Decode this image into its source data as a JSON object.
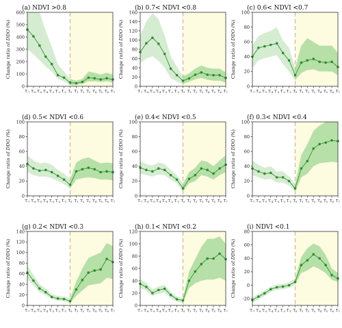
{
  "figure": {
    "ylabel_prefix": "Change ratio of ",
    "ylabel_var": "DDO",
    "ylabel_suffix": " (%)",
    "x_ticks": [
      "T-7",
      "T-6",
      "T-5",
      "T-4",
      "T-3",
      "T-2",
      "T-1",
      "T0",
      "T1",
      "T2",
      "T3",
      "T4",
      "T5",
      "T6",
      "T7"
    ],
    "colors": {
      "pre_band": "#d6ecd2",
      "post_band": "#b7e0a8",
      "post_bg": "#fdfbe0",
      "line": "#3c9a3c",
      "marker": "#2e8b2e",
      "divider": "#c8b89a"
    }
  },
  "chart_data": [
    {
      "type": "line",
      "panel": "(a)",
      "title": "(a) NDVI >0.8",
      "ylim": [
        0,
        600
      ],
      "yticks": [
        0,
        100,
        200,
        300,
        400,
        500,
        600
      ],
      "series": [
        {
          "values": [
            460,
            405,
            330,
            240,
            180,
            90,
            70,
            30,
            25,
            35,
            70,
            65,
            55,
            65,
            55
          ]
        }
      ],
      "band_low": [
        300,
        260,
        210,
        160,
        120,
        60,
        40,
        10,
        10,
        20,
        40,
        40,
        35,
        40,
        30
      ],
      "band_high": [
        600,
        600,
        600,
        450,
        320,
        180,
        120,
        60,
        45,
        60,
        120,
        110,
        95,
        110,
        95
      ]
    },
    {
      "type": "line",
      "panel": "(b)",
      "title": "(b) 0.7< NDVI <0.8",
      "ylim": [
        0,
        160
      ],
      "yticks": [
        0,
        20,
        40,
        60,
        80,
        100,
        120,
        140,
        160
      ],
      "series": [
        {
          "values": [
            74,
            93,
            105,
            92,
            70,
            38,
            24,
            12,
            17,
            25,
            30,
            25,
            24,
            24,
            18
          ]
        }
      ],
      "band_low": [
        50,
        60,
        65,
        55,
        40,
        18,
        10,
        5,
        10,
        15,
        18,
        14,
        12,
        12,
        8
      ],
      "band_high": [
        110,
        140,
        158,
        145,
        110,
        65,
        42,
        22,
        28,
        38,
        45,
        40,
        38,
        38,
        30
      ]
    },
    {
      "type": "line",
      "panel": "(c)",
      "title": "(c) 0.6< NDVI <0.7",
      "ylim": [
        0,
        100
      ],
      "yticks": [
        0,
        20,
        40,
        60,
        80,
        100
      ],
      "series": [
        {
          "values": [
            40,
            52,
            54,
            56,
            58,
            45,
            35,
            15,
            32,
            35,
            37,
            33,
            32,
            33,
            26
          ]
        }
      ],
      "band_low": [
        25,
        35,
        38,
        40,
        42,
        30,
        20,
        8,
        18,
        22,
        23,
        20,
        20,
        20,
        15
      ],
      "band_high": [
        55,
        68,
        72,
        75,
        80,
        62,
        52,
        25,
        55,
        65,
        60,
        55,
        55,
        55,
        45
      ]
    },
    {
      "type": "line",
      "panel": "(d)",
      "title": "(d) 0.5< NDVI <0.6",
      "ylim": [
        0,
        100
      ],
      "yticks": [
        0,
        20,
        40,
        60,
        80,
        100
      ],
      "series": [
        {
          "values": [
            43,
            37,
            34,
            35,
            32,
            27,
            22,
            15,
            33,
            36,
            38,
            36,
            32,
            33,
            32
          ]
        }
      ],
      "band_low": [
        32,
        28,
        26,
        26,
        24,
        20,
        16,
        10,
        22,
        24,
        25,
        24,
        22,
        22,
        21
      ],
      "band_high": [
        55,
        48,
        44,
        45,
        42,
        35,
        30,
        22,
        45,
        50,
        52,
        48,
        44,
        45,
        44
      ]
    },
    {
      "type": "line",
      "panel": "(e)",
      "title": "(e) 0.4< NDVI <0.5",
      "ylim": [
        0,
        100
      ],
      "yticks": [
        0,
        20,
        40,
        60,
        80,
        100
      ],
      "series": [
        {
          "values": [
            38,
            35,
            33,
            37,
            35,
            28,
            22,
            10,
            23,
            28,
            37,
            35,
            30,
            37,
            42
          ]
        }
      ],
      "band_low": [
        30,
        28,
        26,
        29,
        28,
        22,
        17,
        6,
        17,
        20,
        28,
        26,
        22,
        28,
        32
      ],
      "band_high": [
        47,
        43,
        41,
        45,
        43,
        35,
        28,
        16,
        32,
        38,
        48,
        46,
        40,
        48,
        55
      ]
    },
    {
      "type": "line",
      "panel": "(f)",
      "title": "(f) 0.3< NDVI <0.4",
      "ylim": [
        0,
        100
      ],
      "yticks": [
        0,
        20,
        40,
        60,
        80,
        100
      ],
      "series": [
        {
          "values": [
            37,
            33,
            30,
            31,
            25,
            25,
            20,
            10,
            37,
            47,
            64,
            70,
            72,
            75,
            74
          ]
        }
      ],
      "band_low": [
        28,
        25,
        22,
        23,
        18,
        18,
        14,
        6,
        25,
        30,
        40,
        44,
        45,
        46,
        45
      ],
      "band_high": [
        48,
        42,
        38,
        40,
        33,
        33,
        26,
        16,
        55,
        70,
        88,
        95,
        100,
        100,
        100
      ]
    },
    {
      "type": "line",
      "panel": "(g)",
      "title": "(g) 0.2< NDVI <0.3",
      "ylim": [
        0,
        140
      ],
      "yticks": [
        0,
        20,
        40,
        60,
        80,
        100,
        120,
        140
      ],
      "series": [
        {
          "values": [
            62,
            47,
            32,
            25,
            16,
            13,
            12,
            8,
            30,
            48,
            62,
            66,
            68,
            88,
            82
          ]
        }
      ],
      "band_low": [
        50,
        38,
        25,
        19,
        12,
        9,
        8,
        4,
        18,
        28,
        38,
        40,
        42,
        52,
        50
      ],
      "band_high": [
        75,
        58,
        40,
        32,
        21,
        18,
        17,
        13,
        45,
        70,
        90,
        95,
        100,
        118,
        112
      ]
    },
    {
      "type": "line",
      "panel": "(h)",
      "title": "(h) 0.1< NDVI <0.2",
      "ylim": [
        0,
        120
      ],
      "yticks": [
        0,
        20,
        40,
        60,
        80,
        100,
        120
      ],
      "series": [
        {
          "values": [
            35,
            30,
            20,
            25,
            27,
            17,
            10,
            8,
            40,
            55,
            67,
            76,
            76,
            84,
            75
          ]
        }
      ],
      "band_low": [
        28,
        24,
        15,
        19,
        21,
        12,
        6,
        4,
        28,
        36,
        40,
        42,
        42,
        45,
        40
      ],
      "band_high": [
        42,
        37,
        26,
        31,
        33,
        22,
        14,
        12,
        55,
        75,
        95,
        108,
        108,
        112,
        100
      ]
    },
    {
      "type": "line",
      "panel": "(i)",
      "title": "(i) NDVI <0.1",
      "ylim": [
        -30,
        80
      ],
      "yticks": [
        -20,
        0,
        20,
        40,
        60,
        80
      ],
      "series": [
        {
          "values": [
            -22,
            -17,
            -12,
            -6,
            -3,
            -2,
            0,
            5,
            30,
            37,
            46,
            40,
            30,
            15,
            10
          ]
        }
      ],
      "band_low": [
        -26,
        -21,
        -16,
        -10,
        -7,
        -6,
        -4,
        1,
        18,
        22,
        28,
        24,
        18,
        8,
        5
      ],
      "band_high": [
        -18,
        -13,
        -8,
        -2,
        1,
        2,
        4,
        10,
        42,
        55,
        62,
        58,
        45,
        25,
        18
      ]
    }
  ]
}
